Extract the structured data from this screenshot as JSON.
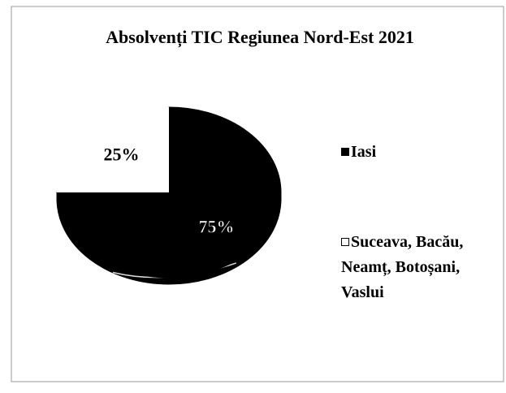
{
  "chart_data": {
    "type": "pie",
    "title": "Absolvenți TIC Regiunea Nord-Est 2021",
    "categories": [
      "Iasi",
      "Suceava, Bacău, Neamț, Botoșani, Vaslui"
    ],
    "values": [
      75,
      25
    ],
    "value_labels": [
      "75%",
      "25%"
    ],
    "colors": [
      "#000000",
      "#ffffff"
    ],
    "legend": "right"
  }
}
